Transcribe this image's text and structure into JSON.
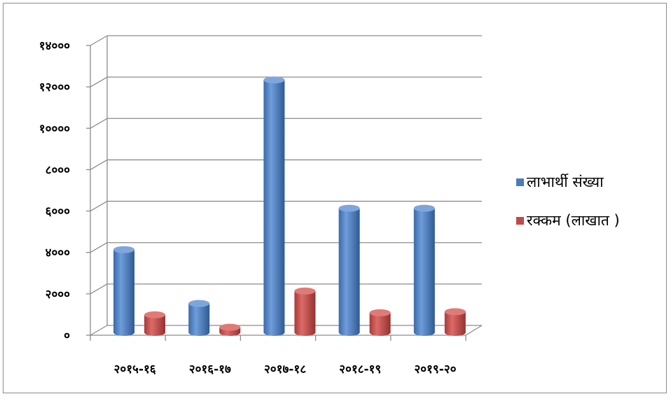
{
  "chart_data": {
    "type": "bar",
    "style": "3d-cylinder",
    "categories": [
      "२०१५-१६",
      "२०१६-१७",
      "२०१७-१८",
      "२०१८-१९",
      "२०१९-२०"
    ],
    "series": [
      {
        "name": "लाभार्थी संख्या",
        "color": "#4a7ebb",
        "values": [
          4000,
          1400,
          12200,
          6000,
          6000
        ]
      },
      {
        "name": "रक्कम (लाखात )",
        "color": "#be4b48",
        "values": [
          850,
          250,
          2000,
          950,
          1000
        ]
      }
    ],
    "ylim": [
      0,
      14000
    ],
    "yticks": [
      0,
      2000,
      4000,
      6000,
      8000,
      10000,
      12000,
      14000
    ],
    "ytick_labels": [
      "०",
      "२०००",
      "४०००",
      "६०००",
      "८०००",
      "१००००",
      "१२०००",
      "१४०००"
    ],
    "grid": true,
    "legend_position": "right"
  }
}
